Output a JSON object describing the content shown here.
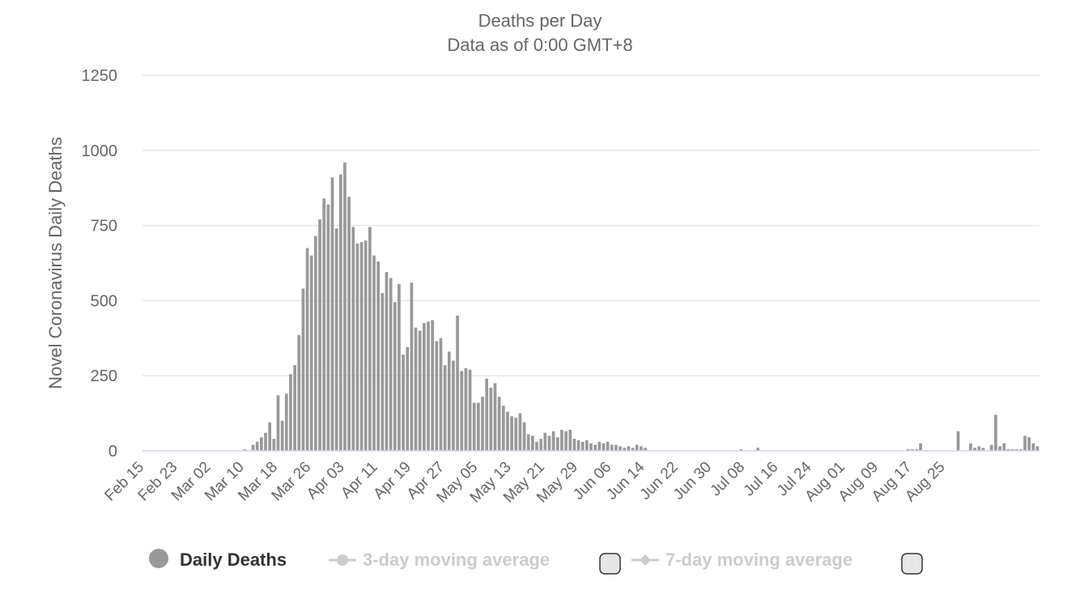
{
  "chart_data": {
    "type": "bar",
    "title": "Deaths per Day",
    "subtitle": "Data as of 0:00 GMT+8",
    "ylabel": "Novel Coronavirus Daily Deaths",
    "xlabel": "",
    "ylim": [
      0,
      1250
    ],
    "yticks": [
      "0",
      "250",
      "500",
      "750",
      "1000",
      "1250"
    ],
    "start_date": "Feb 15",
    "xtick_labels": [
      "Feb 15",
      "Feb 23",
      "Mar 02",
      "Mar 10",
      "Mar 18",
      "Mar 26",
      "Apr 03",
      "Apr 11",
      "Apr 19",
      "Apr 27",
      "May 05",
      "May 13",
      "May 21",
      "May 29",
      "Jun 06",
      "Jun 14",
      "Jun 22",
      "Jun 30",
      "Jul 08",
      "Jul 16",
      "Jul 24",
      "Aug 01",
      "Aug 09",
      "Aug 17",
      "Aug 25"
    ],
    "grid": true,
    "legend_position": "bottom",
    "series": [
      {
        "name": "Daily Deaths",
        "color": "#999999",
        "values": [
          0,
          0,
          0,
          0,
          0,
          0,
          0,
          0,
          0,
          0,
          0,
          0,
          0,
          0,
          0,
          0,
          0,
          0,
          0,
          0,
          0,
          0,
          0,
          0,
          5,
          0,
          20,
          30,
          45,
          60,
          95,
          40,
          185,
          100,
          190,
          255,
          285,
          385,
          540,
          675,
          650,
          715,
          770,
          840,
          820,
          910,
          740,
          920,
          960,
          845,
          745,
          690,
          695,
          700,
          745,
          650,
          630,
          525,
          595,
          575,
          495,
          555,
          320,
          345,
          560,
          410,
          400,
          425,
          430,
          435,
          365,
          375,
          285,
          330,
          300,
          450,
          265,
          275,
          270,
          160,
          160,
          180,
          240,
          210,
          225,
          180,
          150,
          130,
          115,
          110,
          125,
          95,
          55,
          50,
          30,
          40,
          60,
          50,
          65,
          45,
          70,
          65,
          70,
          40,
          35,
          30,
          35,
          25,
          20,
          30,
          25,
          30,
          20,
          20,
          15,
          10,
          15,
          10,
          20,
          15,
          10,
          0,
          0,
          0,
          0,
          0,
          0,
          0,
          0,
          0,
          0,
          0,
          0,
          0,
          0,
          0,
          0,
          0,
          0,
          0,
          0,
          0,
          0,
          5,
          0,
          0,
          0,
          10,
          0,
          0,
          0,
          0,
          0,
          0,
          0,
          0,
          0,
          0,
          0,
          0,
          0,
          0,
          0,
          0,
          0,
          0,
          0,
          0,
          0,
          0,
          0,
          0,
          0,
          0,
          0,
          0,
          0,
          0,
          0,
          0,
          0,
          0,
          0,
          5,
          5,
          5,
          25,
          0,
          0,
          0,
          0,
          0,
          0,
          0,
          0,
          65,
          0,
          0,
          25,
          10,
          15,
          10,
          0,
          20,
          120,
          15,
          25,
          5,
          5,
          5,
          5,
          50,
          45,
          25,
          15
        ]
      }
    ]
  },
  "legend": [
    {
      "label": "Daily Deaths",
      "active": true
    },
    {
      "label": "3-day moving average",
      "active": false
    },
    {
      "label": "7-day moving average",
      "active": false
    }
  ],
  "colors": {
    "bar": "#999999",
    "grid": "#e6e6e6",
    "text": "#666666",
    "legend_active": "#333333",
    "legend_inactive": "#cccccc"
  }
}
